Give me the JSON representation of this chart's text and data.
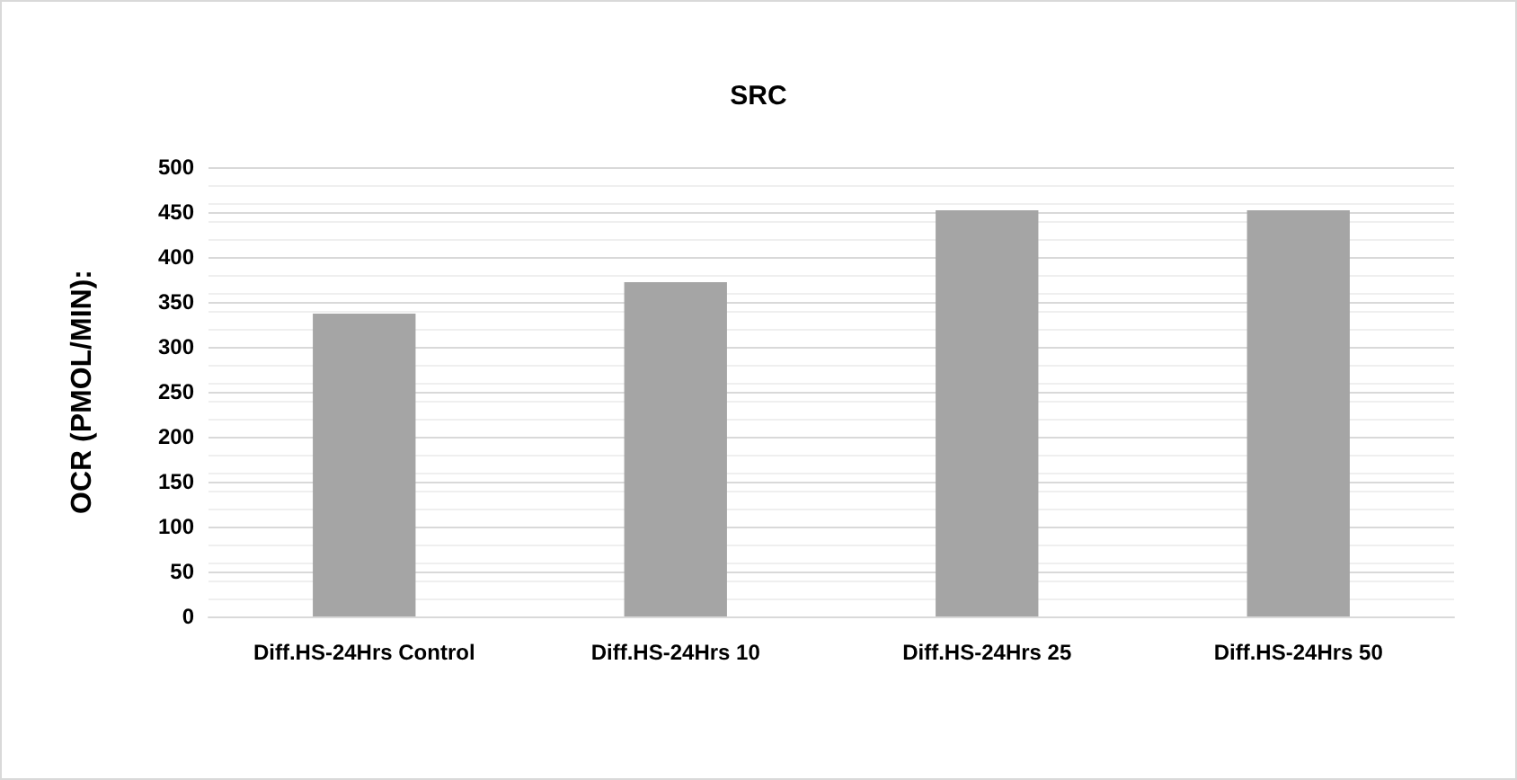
{
  "chart_data": {
    "type": "bar",
    "title": "SRC",
    "ylabel": "OCR (PMOL/MIN):",
    "categories": [
      "Diff.HS-24Hrs Control",
      "Diff.HS-24Hrs 10",
      "Diff.HS-24Hrs 25",
      "Diff.HS-24Hrs 50"
    ],
    "values": [
      337,
      372,
      452,
      452
    ],
    "color": "#a5a5a5",
    "ylim": [
      0,
      500
    ],
    "yticks": [
      0,
      50,
      100,
      150,
      200,
      250,
      300,
      350,
      400,
      450,
      500
    ],
    "grid": "y"
  }
}
